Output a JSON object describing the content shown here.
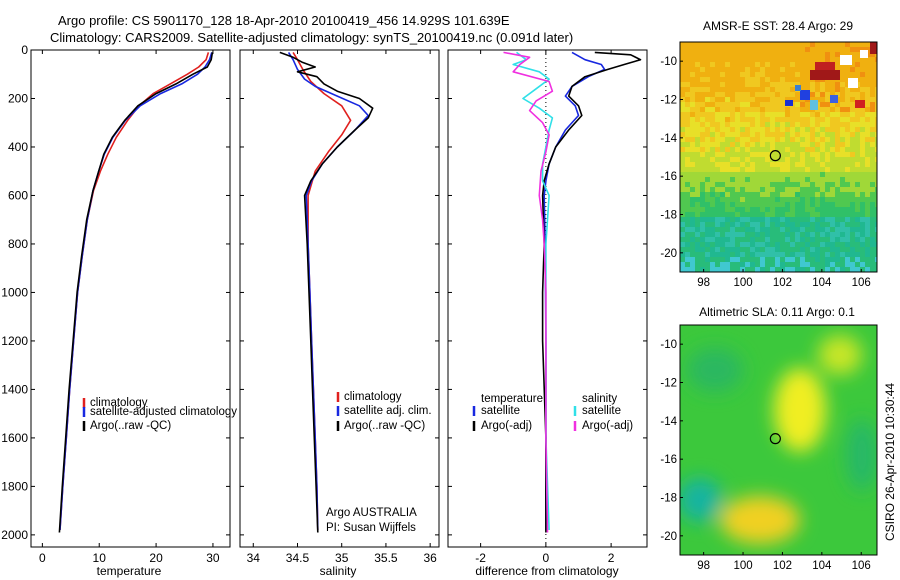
{
  "header": {
    "line1": "Argo profile: CS 5901170_128 18-Apr-2010 20100419_456 14.929S 101.639E",
    "line2": "Climatology: CARS2009. Satellite-adjusted climatology: synTS_20100419.nc (0.091d later)"
  },
  "footer_stamp": "CSIRO 26-Apr-2010 10:30:44",
  "colors": {
    "clim": "#e0201e",
    "sat": "#1828e0",
    "argo": "#000000",
    "sal_sat": "#30e0e8",
    "sal_argo": "#f030e0"
  },
  "chart_data": [
    {
      "type": "line",
      "id": "temperature",
      "xlabel": "temperature",
      "xlim": [
        -2,
        33
      ],
      "xticks": [
        0,
        10,
        20,
        30
      ],
      "ylim": [
        2050,
        0
      ],
      "yticks": [
        0,
        200,
        400,
        600,
        800,
        1000,
        1200,
        1400,
        1600,
        1800,
        2000
      ],
      "legend": [
        "climatology",
        "satellite-adjusted climatology",
        "Argo(..raw -QC)"
      ],
      "series": [
        {
          "name": "climatology",
          "color": "clim",
          "points": [
            [
              29.2,
              10
            ],
            [
              28.8,
              40
            ],
            [
              27.5,
              70
            ],
            [
              25.5,
              100
            ],
            [
              22.5,
              140
            ],
            [
              19.5,
              180
            ],
            [
              17,
              230
            ],
            [
              15,
              290
            ],
            [
              13,
              360
            ],
            [
              11.5,
              430
            ],
            [
              10.2,
              500
            ],
            [
              9,
              580
            ],
            [
              7.9,
              700
            ],
            [
              7,
              850
            ],
            [
              6.2,
              1000
            ],
            [
              5.5,
              1200
            ],
            [
              4.8,
              1400
            ],
            [
              4.2,
              1600
            ],
            [
              3.6,
              1800
            ],
            [
              3.1,
              1980
            ]
          ]
        },
        {
          "name": "satellite-adjusted climatology",
          "color": "sat",
          "points": [
            [
              29.8,
              10
            ],
            [
              29.4,
              40
            ],
            [
              28.6,
              70
            ],
            [
              27.3,
              100
            ],
            [
              24.5,
              140
            ],
            [
              20.8,
              180
            ],
            [
              17.2,
              230
            ],
            [
              14.6,
              290
            ],
            [
              12.4,
              360
            ],
            [
              10.9,
              430
            ],
            [
              9.9,
              500
            ],
            [
              8.9,
              580
            ],
            [
              7.9,
              700
            ],
            [
              7,
              850
            ],
            [
              6.2,
              1000
            ],
            [
              5.5,
              1200
            ],
            [
              4.8,
              1400
            ],
            [
              4.2,
              1600
            ],
            [
              3.6,
              1800
            ],
            [
              3.1,
              1980
            ]
          ]
        },
        {
          "name": "Argo(..raw -QC)",
          "color": "argo",
          "points": [
            [
              29.9,
              10
            ],
            [
              29.7,
              40
            ],
            [
              29,
              70
            ],
            [
              26.5,
              100
            ],
            [
              23.5,
              140
            ],
            [
              20,
              180
            ],
            [
              16.8,
              230
            ],
            [
              14.5,
              290
            ],
            [
              12.3,
              360
            ],
            [
              10.8,
              430
            ],
            [
              9.9,
              500
            ],
            [
              8.9,
              580
            ],
            [
              7.8,
              700
            ],
            [
              6.9,
              850
            ],
            [
              6.1,
              1000
            ],
            [
              5.4,
              1200
            ],
            [
              4.7,
              1400
            ],
            [
              4.1,
              1600
            ],
            [
              3.5,
              1800
            ],
            [
              3.0,
              1990
            ]
          ]
        }
      ]
    },
    {
      "type": "line",
      "id": "salinity",
      "xlabel": "salinity",
      "xlim": [
        33.85,
        36.1
      ],
      "xticks": [
        34,
        34.5,
        35,
        35.5,
        36
      ],
      "ylim": [
        2050,
        0
      ],
      "legend": [
        "climatology",
        "satellite adj. clim.",
        "Argo(..raw -QC)"
      ],
      "annotation": [
        "Argo AUSTRALIA",
        "PI: Susan Wijffels"
      ],
      "series": [
        {
          "name": "climatology",
          "color": "clim",
          "points": [
            [
              34.45,
              10
            ],
            [
              34.5,
              40
            ],
            [
              34.56,
              80
            ],
            [
              34.65,
              130
            ],
            [
              34.8,
              180
            ],
            [
              35.0,
              230
            ],
            [
              35.1,
              290
            ],
            [
              35.0,
              350
            ],
            [
              34.85,
              420
            ],
            [
              34.7,
              500
            ],
            [
              34.62,
              600
            ],
            [
              34.62,
              800
            ],
            [
              34.64,
              1000
            ],
            [
              34.66,
              1200
            ],
            [
              34.68,
              1400
            ],
            [
              34.7,
              1600
            ],
            [
              34.72,
              1800
            ],
            [
              34.73,
              1980
            ]
          ]
        },
        {
          "name": "satellite adj. clim.",
          "color": "sat",
          "points": [
            [
              34.4,
              10
            ],
            [
              34.45,
              40
            ],
            [
              34.5,
              80
            ],
            [
              34.58,
              120
            ],
            [
              34.7,
              150
            ],
            [
              34.95,
              190
            ],
            [
              35.2,
              230
            ],
            [
              35.3,
              270
            ],
            [
              35.15,
              330
            ],
            [
              34.95,
              400
            ],
            [
              34.78,
              470
            ],
            [
              34.66,
              540
            ],
            [
              34.6,
              600
            ],
            [
              34.62,
              800
            ],
            [
              34.64,
              1000
            ],
            [
              34.66,
              1200
            ],
            [
              34.68,
              1400
            ],
            [
              34.7,
              1600
            ],
            [
              34.72,
              1800
            ],
            [
              34.73,
              1980
            ]
          ]
        },
        {
          "name": "Argo(..raw -QC)",
          "color": "argo",
          "points": [
            [
              34.3,
              10
            ],
            [
              34.45,
              30
            ],
            [
              34.55,
              50
            ],
            [
              34.7,
              70
            ],
            [
              34.5,
              90
            ],
            [
              34.72,
              110
            ],
            [
              34.8,
              140
            ],
            [
              34.95,
              170
            ],
            [
              35.2,
              200
            ],
            [
              35.35,
              240
            ],
            [
              35.3,
              280
            ],
            [
              35.15,
              330
            ],
            [
              34.95,
              400
            ],
            [
              34.78,
              470
            ],
            [
              34.65,
              540
            ],
            [
              34.58,
              600
            ],
            [
              34.61,
              800
            ],
            [
              34.63,
              1000
            ],
            [
              34.65,
              1200
            ],
            [
              34.67,
              1400
            ],
            [
              34.69,
              1600
            ],
            [
              34.71,
              1800
            ],
            [
              34.73,
              1990
            ]
          ]
        }
      ]
    },
    {
      "type": "line",
      "id": "difference",
      "xlabel": "difference from climatology",
      "xlim": [
        -3,
        3.1
      ],
      "xticks": [
        -2,
        0,
        2
      ],
      "ylim": [
        2050,
        0
      ],
      "legend_headers": [
        "temperature",
        "salinity"
      ],
      "legend": [
        "satellite",
        "Argo(-adj)",
        "satellite",
        "Argo(-adj)"
      ],
      "series": [
        {
          "name": "temperature satellite",
          "color": "sat",
          "points": [
            [
              0.8,
              10
            ],
            [
              1.2,
              40
            ],
            [
              1.7,
              60
            ],
            [
              1.8,
              80
            ],
            [
              1.3,
              110
            ],
            [
              0.8,
              150
            ],
            [
              0.6,
              190
            ],
            [
              0.9,
              230
            ],
            [
              1.0,
              270
            ],
            [
              0.6,
              330
            ],
            [
              0.3,
              400
            ],
            [
              0.1,
              470
            ],
            [
              0.0,
              540
            ],
            [
              -0.05,
              600
            ],
            [
              -0.02,
              800
            ],
            [
              0,
              1200
            ],
            [
              0,
              1600
            ],
            [
              0,
              1980
            ]
          ]
        },
        {
          "name": "temperature Argo(-adj)",
          "color": "argo",
          "points": [
            [
              1.5,
              10
            ],
            [
              2.6,
              20
            ],
            [
              2.9,
              40
            ],
            [
              2.4,
              60
            ],
            [
              1.9,
              80
            ],
            [
              1.2,
              110
            ],
            [
              0.8,
              150
            ],
            [
              0.7,
              190
            ],
            [
              1.0,
              230
            ],
            [
              1.1,
              270
            ],
            [
              0.7,
              330
            ],
            [
              0.3,
              400
            ],
            [
              0.1,
              470
            ],
            [
              -0.05,
              540
            ],
            [
              -0.1,
              600
            ],
            [
              -0.05,
              800
            ],
            [
              -0.1,
              1000
            ],
            [
              -0.1,
              1200
            ],
            [
              0,
              1600
            ],
            [
              0,
              1990
            ]
          ]
        },
        {
          "name": "salinity satellite",
          "color": "sal_sat",
          "points": [
            [
              -0.9,
              10
            ],
            [
              -0.6,
              40
            ],
            [
              -1.0,
              60
            ],
            [
              -0.2,
              90
            ],
            [
              0.1,
              120
            ],
            [
              -0.3,
              160
            ],
            [
              -0.7,
              200
            ],
            [
              -0.2,
              240
            ],
            [
              0.2,
              280
            ],
            [
              0.1,
              330
            ],
            [
              0.0,
              400
            ],
            [
              -0.1,
              470
            ],
            [
              -0.1,
              540
            ],
            [
              0.1,
              600
            ],
            [
              0.0,
              800
            ],
            [
              0,
              1200
            ],
            [
              0,
              1600
            ],
            [
              0.1,
              1980
            ]
          ]
        },
        {
          "name": "salinity Argo(-adj)",
          "color": "sal_argo",
          "points": [
            [
              -1.3,
              10
            ],
            [
              -0.5,
              30
            ],
            [
              -0.8,
              60
            ],
            [
              -1.0,
              90
            ],
            [
              0.1,
              130
            ],
            [
              0.2,
              170
            ],
            [
              -0.3,
              210
            ],
            [
              -0.5,
              250
            ],
            [
              -0.1,
              300
            ],
            [
              0.1,
              350
            ],
            [
              0.0,
              420
            ],
            [
              -0.15,
              500
            ],
            [
              -0.2,
              600
            ],
            [
              -0.1,
              700
            ],
            [
              -0.05,
              800
            ],
            [
              0,
              1000
            ],
            [
              0,
              1600
            ],
            [
              0.05,
              1990
            ]
          ]
        }
      ]
    },
    {
      "type": "heatmap",
      "id": "sst-map",
      "title": "AMSR-E SST: 28.4  Argo: 29",
      "xlim": [
        96.8,
        106.8
      ],
      "ylim": [
        -21,
        -9
      ],
      "xticks": [
        98,
        100,
        102,
        104,
        106
      ],
      "yticks": [
        -10,
        -12,
        -14,
        -16,
        -18,
        -20
      ],
      "float_position": [
        101.64,
        -14.93
      ]
    },
    {
      "type": "heatmap",
      "id": "sla-map",
      "title": "Altimetric SLA: 0.11  Argo: 0.1",
      "xlim": [
        96.8,
        106.8
      ],
      "ylim": [
        -21,
        -9
      ],
      "xticks": [
        98,
        100,
        102,
        104,
        106
      ],
      "yticks": [
        -10,
        -12,
        -14,
        -16,
        -18,
        -20
      ],
      "float_position": [
        101.64,
        -14.93
      ]
    }
  ]
}
